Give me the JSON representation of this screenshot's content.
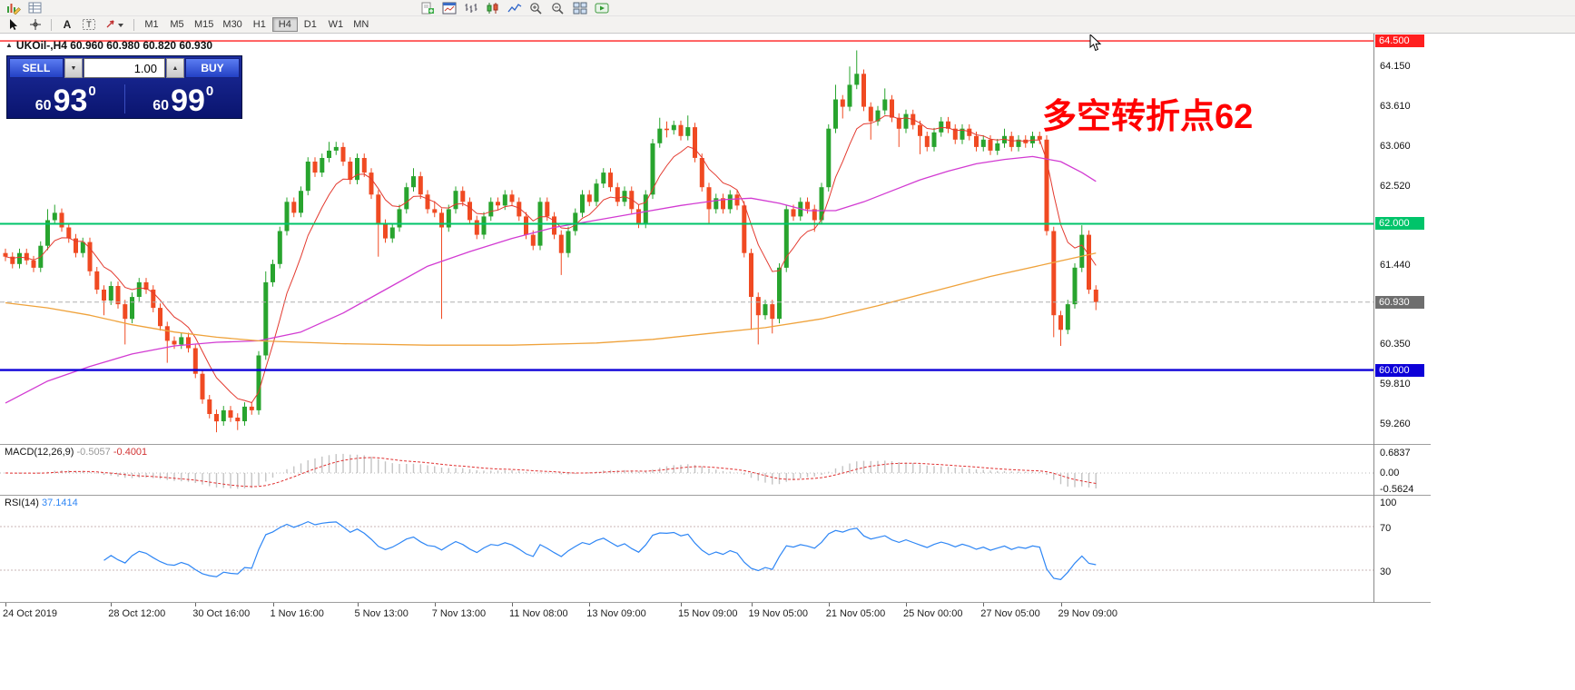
{
  "toolbar": {
    "timeframes": {
      "items": [
        "M1",
        "M5",
        "M15",
        "M30",
        "H1",
        "H4",
        "D1",
        "W1",
        "MN"
      ],
      "active": "H4"
    },
    "icons": {
      "row1_left": [
        "chart-pencil",
        "profile-grid"
      ],
      "row1_main": [
        "new-order",
        "chart-window",
        "bar-chart",
        "candlestick-chart",
        "line-chart",
        "zoom-in",
        "zoom-out",
        "tile-windows",
        "auto-trading"
      ],
      "row2_tools": [
        "cursor",
        "crosshair",
        "text-label-a",
        "text-box-t",
        "arrow-styles"
      ]
    }
  },
  "chart": {
    "title": "UKOil-,H4 60.960 60.980 60.820 60.930",
    "annotation": {
      "text": "多空转折点62",
      "color": "#ff0000"
    },
    "trade_panel": {
      "sell_label": "SELL",
      "buy_label": "BUY",
      "volume": "1.00",
      "bid_small": "60",
      "bid_big": "93",
      "bid_sup": "0",
      "ask_small": "60",
      "ask_big": "99",
      "ask_sup": "0"
    },
    "axis_labels": [
      {
        "label": "64.150",
        "price": 64.15
      },
      {
        "label": "63.610",
        "price": 63.61
      },
      {
        "label": "63.060",
        "price": 63.06
      },
      {
        "label": "62.520",
        "price": 62.52
      },
      {
        "label": "61.440",
        "price": 61.44
      },
      {
        "label": "60.350",
        "price": 60.35
      },
      {
        "label": "59.810",
        "price": 59.81
      },
      {
        "label": "59.260",
        "price": 59.26
      }
    ],
    "badges": [
      {
        "label": "64.500",
        "price": 64.5,
        "bg": "#ff1f1f"
      },
      {
        "label": "62.000",
        "price": 62.0,
        "bg": "#00c46a"
      },
      {
        "label": "60.930",
        "price": 60.93,
        "bg": "#6e6e6e"
      },
      {
        "label": "60.000",
        "price": 60.0,
        "bg": "#0d00d8"
      }
    ],
    "levels": [
      {
        "price": 64.5,
        "color": "#ff1f1f",
        "width": 1.4
      },
      {
        "price": 62.0,
        "color": "#00c46a",
        "width": 2
      },
      {
        "price": 60.0,
        "color": "#0d00d8",
        "width": 2.4
      }
    ],
    "current_price": {
      "price": 60.93,
      "label": "60.930"
    }
  },
  "chart_data": {
    "type": "candlestick",
    "symbol": "UKOil-",
    "timeframe": "H4",
    "ohlc_current": {
      "open": 60.96,
      "high": 60.98,
      "low": 60.82,
      "close": 60.93
    },
    "ylim": [
      58.99,
      64.6
    ],
    "candles": [
      [
        61.6,
        61.66,
        61.49,
        61.55
      ],
      [
        61.55,
        61.61,
        61.39,
        61.45
      ],
      [
        61.45,
        61.66,
        61.39,
        61.6
      ],
      [
        61.6,
        61.66,
        61.44,
        61.5
      ],
      [
        61.5,
        61.56,
        61.34,
        61.4
      ],
      [
        61.4,
        61.76,
        61.34,
        61.7
      ],
      [
        61.7,
        62.2,
        61.64,
        62.05
      ],
      [
        62.05,
        62.26,
        61.99,
        62.15
      ],
      [
        62.15,
        62.21,
        61.89,
        61.95
      ],
      [
        61.95,
        62.01,
        61.74,
        61.8
      ],
      [
        61.8,
        61.86,
        61.54,
        61.6
      ],
      [
        61.6,
        61.81,
        61.54,
        61.75
      ],
      [
        61.75,
        61.81,
        61.29,
        61.35
      ],
      [
        61.35,
        61.41,
        61.04,
        61.1
      ],
      [
        61.1,
        61.16,
        60.75,
        60.95
      ],
      [
        60.95,
        61.21,
        60.89,
        61.15
      ],
      [
        61.15,
        61.21,
        60.84,
        60.9
      ],
      [
        60.9,
        60.96,
        60.35,
        60.7
      ],
      [
        60.7,
        61.06,
        60.64,
        61.0
      ],
      [
        61.0,
        61.26,
        60.94,
        61.2
      ],
      [
        61.2,
        61.26,
        61.04,
        61.1
      ],
      [
        61.1,
        61.16,
        60.79,
        60.85
      ],
      [
        60.85,
        60.91,
        60.54,
        60.6
      ],
      [
        60.6,
        60.66,
        60.1,
        60.4
      ],
      [
        60.4,
        60.46,
        60.29,
        60.35
      ],
      [
        60.35,
        60.51,
        60.29,
        60.45
      ],
      [
        60.45,
        60.51,
        60.24,
        60.3
      ],
      [
        60.3,
        60.36,
        59.89,
        59.95
      ],
      [
        59.95,
        60.01,
        59.54,
        59.6
      ],
      [
        59.6,
        59.66,
        59.34,
        59.4
      ],
      [
        59.4,
        59.46,
        59.15,
        59.3
      ],
      [
        59.3,
        59.51,
        59.24,
        59.45
      ],
      [
        59.45,
        59.51,
        59.29,
        59.35
      ],
      [
        59.35,
        59.41,
        59.18,
        59.3
      ],
      [
        59.3,
        59.56,
        59.24,
        59.5
      ],
      [
        59.5,
        59.56,
        59.39,
        59.45
      ],
      [
        59.45,
        60.26,
        59.39,
        60.2
      ],
      [
        60.2,
        61.35,
        60.14,
        61.2
      ],
      [
        61.2,
        61.51,
        61.14,
        61.45
      ],
      [
        61.45,
        61.96,
        61.39,
        61.9
      ],
      [
        61.9,
        62.36,
        61.84,
        62.3
      ],
      [
        62.3,
        62.36,
        62.09,
        62.15
      ],
      [
        62.15,
        62.51,
        62.09,
        62.45
      ],
      [
        62.45,
        62.91,
        62.39,
        62.85
      ],
      [
        62.85,
        62.91,
        62.64,
        62.7
      ],
      [
        62.7,
        62.96,
        62.64,
        62.9
      ],
      [
        62.9,
        63.12,
        62.84,
        63.0
      ],
      [
        63.0,
        63.12,
        62.94,
        63.05
      ],
      [
        63.05,
        63.11,
        62.79,
        62.85
      ],
      [
        62.85,
        62.91,
        62.54,
        62.6
      ],
      [
        62.6,
        62.96,
        62.54,
        62.9
      ],
      [
        62.9,
        62.96,
        62.64,
        62.7
      ],
      [
        62.7,
        62.76,
        62.34,
        62.4
      ],
      [
        62.4,
        62.46,
        61.55,
        62.0
      ],
      [
        62.0,
        62.06,
        61.74,
        61.8
      ],
      [
        61.8,
        62.01,
        61.74,
        61.95
      ],
      [
        61.95,
        62.26,
        61.89,
        62.2
      ],
      [
        62.2,
        62.56,
        62.14,
        62.5
      ],
      [
        62.5,
        62.76,
        62.44,
        62.65
      ],
      [
        62.65,
        62.71,
        62.34,
        62.4
      ],
      [
        62.4,
        62.46,
        62.14,
        62.2
      ],
      [
        62.2,
        62.31,
        62.09,
        62.15
      ],
      [
        62.15,
        62.21,
        60.7,
        61.95
      ],
      [
        61.95,
        62.26,
        61.89,
        62.2
      ],
      [
        62.2,
        62.51,
        62.14,
        62.45
      ],
      [
        62.45,
        62.51,
        62.24,
        62.3
      ],
      [
        62.3,
        62.36,
        61.99,
        62.05
      ],
      [
        62.05,
        62.11,
        61.79,
        61.85
      ],
      [
        61.85,
        62.16,
        61.79,
        62.1
      ],
      [
        62.1,
        62.36,
        62.04,
        62.3
      ],
      [
        62.3,
        62.36,
        62.19,
        62.25
      ],
      [
        62.25,
        62.46,
        62.19,
        62.4
      ],
      [
        62.4,
        62.46,
        62.24,
        62.3
      ],
      [
        62.3,
        62.36,
        62.04,
        62.1
      ],
      [
        62.1,
        62.16,
        61.79,
        61.85
      ],
      [
        61.85,
        61.91,
        61.64,
        61.7
      ],
      [
        61.7,
        62.36,
        61.64,
        62.3
      ],
      [
        62.3,
        62.36,
        62.04,
        62.1
      ],
      [
        62.1,
        62.16,
        61.79,
        61.85
      ],
      [
        61.85,
        61.91,
        61.3,
        61.6
      ],
      [
        61.6,
        61.96,
        61.54,
        61.9
      ],
      [
        61.9,
        62.21,
        61.84,
        62.15
      ],
      [
        62.15,
        62.46,
        62.09,
        62.4
      ],
      [
        62.4,
        62.46,
        62.24,
        62.3
      ],
      [
        62.3,
        62.61,
        62.24,
        62.55
      ],
      [
        62.55,
        62.76,
        62.49,
        62.7
      ],
      [
        62.7,
        62.76,
        62.44,
        62.5
      ],
      [
        62.5,
        62.56,
        62.24,
        62.3
      ],
      [
        62.3,
        62.51,
        62.24,
        62.45
      ],
      [
        62.45,
        62.51,
        62.14,
        62.2
      ],
      [
        62.2,
        62.26,
        61.94,
        62.0
      ],
      [
        62.0,
        62.46,
        61.94,
        62.4
      ],
      [
        62.4,
        63.16,
        62.34,
        63.1
      ],
      [
        63.1,
        63.45,
        63.04,
        63.3
      ],
      [
        63.3,
        63.4,
        63.18,
        63.28
      ],
      [
        63.28,
        63.41,
        63.22,
        63.35
      ],
      [
        63.35,
        63.41,
        63.14,
        63.2
      ],
      [
        63.2,
        63.48,
        63.14,
        63.32
      ],
      [
        63.32,
        63.38,
        62.84,
        62.9
      ],
      [
        62.9,
        62.96,
        62.44,
        62.5
      ],
      [
        62.5,
        62.56,
        62.0,
        62.2
      ],
      [
        62.2,
        62.41,
        62.14,
        62.35
      ],
      [
        62.35,
        62.41,
        62.14,
        62.2
      ],
      [
        62.2,
        62.46,
        62.14,
        62.4
      ],
      [
        62.4,
        62.46,
        62.19,
        62.25
      ],
      [
        62.25,
        62.31,
        61.54,
        61.6
      ],
      [
        61.6,
        61.66,
        60.55,
        61.0
      ],
      [
        61.0,
        61.06,
        60.35,
        60.75
      ],
      [
        60.75,
        60.96,
        60.69,
        60.9
      ],
      [
        60.9,
        60.96,
        60.5,
        60.7
      ],
      [
        60.7,
        61.46,
        60.64,
        61.4
      ],
      [
        61.4,
        62.26,
        61.34,
        62.2
      ],
      [
        62.2,
        62.26,
        62.04,
        62.1
      ],
      [
        62.1,
        62.36,
        62.04,
        62.3
      ],
      [
        62.3,
        62.36,
        62.14,
        62.2
      ],
      [
        62.2,
        62.26,
        61.89,
        62.05
      ],
      [
        62.05,
        62.56,
        61.99,
        62.5
      ],
      [
        62.5,
        63.36,
        62.44,
        63.3
      ],
      [
        63.3,
        63.9,
        63.24,
        63.7
      ],
      [
        63.7,
        63.76,
        63.44,
        63.6
      ],
      [
        63.6,
        64.15,
        63.54,
        63.9
      ],
      [
        63.9,
        64.37,
        63.84,
        64.05
      ],
      [
        64.05,
        64.11,
        63.54,
        63.6
      ],
      [
        63.6,
        63.66,
        63.15,
        63.4
      ],
      [
        63.4,
        63.61,
        63.34,
        63.55
      ],
      [
        63.55,
        63.85,
        63.49,
        63.7
      ],
      [
        63.7,
        63.76,
        63.39,
        63.45
      ],
      [
        63.45,
        63.51,
        63.05,
        63.3
      ],
      [
        63.3,
        63.56,
        63.24,
        63.5
      ],
      [
        63.5,
        63.56,
        63.29,
        63.35
      ],
      [
        63.35,
        63.41,
        62.95,
        63.2
      ],
      [
        63.2,
        63.26,
        62.99,
        63.05
      ],
      [
        63.05,
        63.31,
        62.99,
        63.25
      ],
      [
        63.25,
        63.46,
        63.19,
        63.4
      ],
      [
        63.4,
        63.46,
        63.24,
        63.3
      ],
      [
        63.3,
        63.36,
        63.09,
        63.15
      ],
      [
        63.15,
        63.36,
        63.09,
        63.3
      ],
      [
        63.3,
        63.36,
        63.14,
        63.2
      ],
      [
        63.2,
        63.26,
        62.99,
        63.05
      ],
      [
        63.05,
        63.21,
        62.99,
        63.15
      ],
      [
        63.15,
        63.21,
        62.94,
        63.0
      ],
      [
        63.0,
        63.16,
        62.94,
        63.1
      ],
      [
        63.1,
        63.3,
        63.04,
        63.2
      ],
      [
        63.2,
        63.26,
        62.99,
        63.05
      ],
      [
        63.05,
        63.21,
        62.99,
        63.15
      ],
      [
        63.15,
        63.21,
        63.04,
        63.1
      ],
      [
        63.1,
        63.26,
        63.04,
        63.2
      ],
      [
        63.2,
        63.26,
        63.09,
        63.15
      ],
      [
        63.15,
        63.21,
        61.84,
        61.9
      ],
      [
        61.9,
        61.96,
        60.45,
        60.75
      ],
      [
        60.75,
        60.81,
        60.33,
        60.55
      ],
      [
        60.55,
        60.96,
        60.49,
        60.9
      ],
      [
        60.9,
        61.46,
        60.84,
        61.4
      ],
      [
        61.4,
        61.98,
        61.34,
        61.85
      ],
      [
        61.85,
        61.91,
        61.04,
        61.1
      ],
      [
        61.1,
        61.16,
        60.82,
        60.93
      ]
    ],
    "time_labels": [
      {
        "label": "24 Oct 2019",
        "index": 0
      },
      {
        "label": "28 Oct 12:00",
        "index": 15
      },
      {
        "label": "30 Oct 16:00",
        "index": 27
      },
      {
        "label": "1 Nov 16:00",
        "index": 38
      },
      {
        "label": "5 Nov 13:00",
        "index": 50
      },
      {
        "label": "7 Nov 13:00",
        "index": 61
      },
      {
        "label": "11 Nov 08:00",
        "index": 72
      },
      {
        "label": "13 Nov 09:00",
        "index": 83
      },
      {
        "label": "15 Nov 09:00",
        "index": 96
      },
      {
        "label": "19 Nov 05:00",
        "index": 106
      },
      {
        "label": "21 Nov 05:00",
        "index": 117
      },
      {
        "label": "25 Nov 00:00",
        "index": 128
      },
      {
        "label": "27 Nov 05:00",
        "index": 139
      },
      {
        "label": "29 Nov 09:00",
        "index": 150
      }
    ],
    "overlays": {
      "ma_fast": {
        "color": "#e3392e",
        "type": "ema",
        "period": 8
      },
      "ma_mid": {
        "color": "#d23bd2",
        "points": [
          [
            0,
            59.55
          ],
          [
            6,
            59.85
          ],
          [
            12,
            60.05
          ],
          [
            18,
            60.22
          ],
          [
            24,
            60.33
          ],
          [
            30,
            60.38
          ],
          [
            36,
            60.4
          ],
          [
            42,
            60.52
          ],
          [
            48,
            60.78
          ],
          [
            54,
            61.1
          ],
          [
            60,
            61.42
          ],
          [
            66,
            61.62
          ],
          [
            72,
            61.8
          ],
          [
            78,
            61.95
          ],
          [
            84,
            62.05
          ],
          [
            90,
            62.15
          ],
          [
            96,
            62.25
          ],
          [
            102,
            62.33
          ],
          [
            106,
            62.35
          ],
          [
            110,
            62.28
          ],
          [
            114,
            62.18
          ],
          [
            118,
            62.18
          ],
          [
            122,
            62.3
          ],
          [
            126,
            62.45
          ],
          [
            130,
            62.6
          ],
          [
            134,
            62.72
          ],
          [
            138,
            62.82
          ],
          [
            142,
            62.88
          ],
          [
            146,
            62.92
          ],
          [
            150,
            62.85
          ],
          [
            153,
            62.7
          ],
          [
            155,
            62.58
          ]
        ]
      },
      "ma_slow": {
        "color": "#efa23b",
        "points": [
          [
            0,
            60.92
          ],
          [
            6,
            60.85
          ],
          [
            12,
            60.75
          ],
          [
            18,
            60.62
          ],
          [
            24,
            60.52
          ],
          [
            30,
            60.45
          ],
          [
            36,
            60.4
          ],
          [
            48,
            60.36
          ],
          [
            60,
            60.34
          ],
          [
            72,
            60.34
          ],
          [
            84,
            60.37
          ],
          [
            92,
            60.42
          ],
          [
            100,
            60.5
          ],
          [
            108,
            60.58
          ],
          [
            116,
            60.7
          ],
          [
            124,
            60.88
          ],
          [
            132,
            61.08
          ],
          [
            140,
            61.28
          ],
          [
            148,
            61.45
          ],
          [
            155,
            61.6
          ]
        ]
      }
    },
    "indicators": [
      {
        "name": "MACD",
        "label": "MACD(12,26,9)",
        "values": [
          "-0.5057",
          "-0.4001"
        ],
        "scale": [
          {
            "label": "0.6837",
            "v": 0.6837
          },
          {
            "label": "0.00",
            "v": 0
          },
          {
            "label": "-0.5624",
            "v": -0.5624
          }
        ],
        "histogram_color": "#c4c4c4",
        "signal_color": "#e03030"
      },
      {
        "name": "RSI",
        "label": "RSI(14)",
        "value": "37.1414",
        "scale": [
          {
            "label": "100",
            "v": 100
          },
          {
            "label": "70",
            "v": 70
          },
          {
            "label": "30",
            "v": 30
          }
        ],
        "line_color": "#2e86f5",
        "levels": [
          70,
          30
        ]
      }
    ],
    "colors": {
      "bull": "#28a42e",
      "bear": "#f04a22",
      "background": "#ffffff",
      "current_price_line": "#b0b0b0"
    }
  }
}
